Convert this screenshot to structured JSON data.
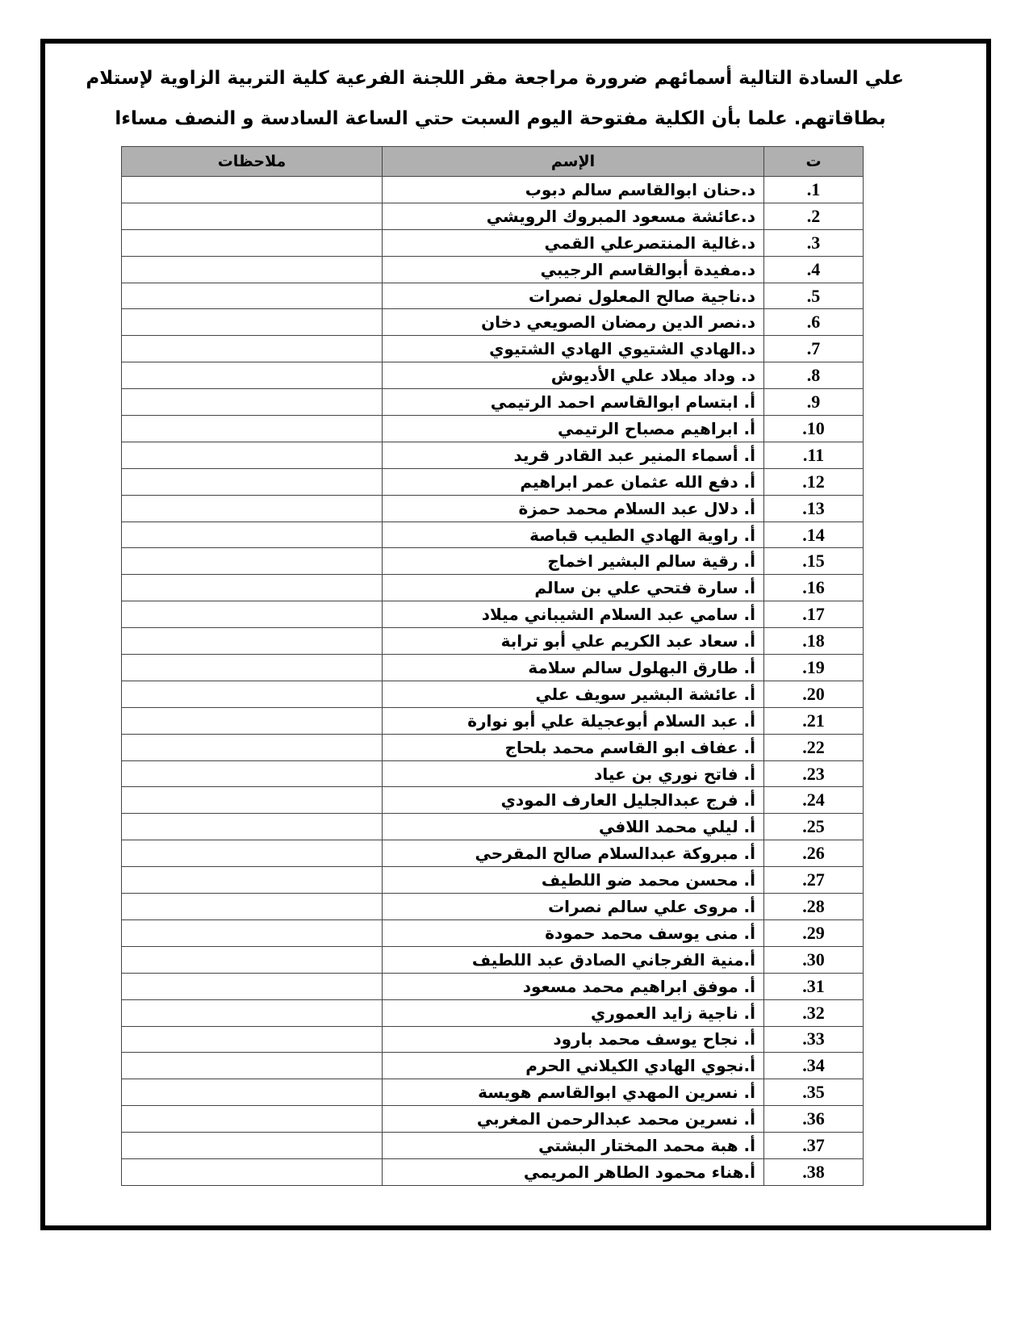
{
  "header": {
    "lines": [
      "علي السادة التالية أسمائهم ضرورة مراجعة مقر اللجنة الفرعية كلية التربية الزاوية لإستلام",
      "بطاقاتهم. علما بأن الكلية مفتوحة اليوم السبت حتي الساعة السادسة و النصف مساءا"
    ]
  },
  "table": {
    "columns": [
      "ت",
      "الإسم",
      "ملاحظات"
    ],
    "rows": [
      [
        "1.",
        "د.حنان ابوالقاسم سالم دبوب"
      ],
      [
        "2.",
        "د.عائشة مسعود المبروك الرويشي"
      ],
      [
        "3.",
        "د.غالية المنتصرعلي القمي"
      ],
      [
        "4.",
        "د.مفيدة أبوالقاسم الرجيبي"
      ],
      [
        "5.",
        "د.ناجية صالح المعلول نصرات"
      ],
      [
        "6.",
        "د.نصر الدين رمضان الصويعي دخان"
      ],
      [
        "7.",
        "د.الهادي الشتيوي الهادي الشتيوي"
      ],
      [
        "8.",
        "د. وداد ميلاد علي الأديوش"
      ],
      [
        "9.",
        "أ. ابتسام ابوالقاسم احمد الرتيمي"
      ],
      [
        "10.",
        "أ. ابراهيم مصباح الرتيمي"
      ],
      [
        "11.",
        "أ. أسماء المنير عبد القادر قريد"
      ],
      [
        "12.",
        "أ. دفع الله عثمان عمر ابراهيم"
      ],
      [
        "13.",
        "أ. دلال عبد السلام محمد حمزة"
      ],
      [
        "14.",
        "أ. راوية الهادي الطيب قباصة"
      ],
      [
        "15.",
        "أ. رقية سالم البشير اخماج"
      ],
      [
        "16.",
        "أ. سارة فتحي علي بن سالم"
      ],
      [
        "17.",
        "أ. سامي عبد السلام الشيباني ميلاد"
      ],
      [
        "18.",
        "أ. سعاد عبد الكريم علي أبو ترابة"
      ],
      [
        "19.",
        "أ. طارق البهلول سالم سلامة"
      ],
      [
        "20.",
        "أ. عائشة البشير سويف علي"
      ],
      [
        "21.",
        "أ. عبد السلام أبوعجيلة علي أبو نوارة"
      ],
      [
        "22.",
        "أ. عفاف ابو القاسم محمد بلحاج"
      ],
      [
        "23.",
        "أ. فاتح نوري بن عياد"
      ],
      [
        "24.",
        "أ. فرج عبدالجليل العارف المودي"
      ],
      [
        "25.",
        "أ. ليلي محمد اللافي"
      ],
      [
        "26.",
        "أ. مبروكة عبدالسلام صالح المقرحي"
      ],
      [
        "27.",
        "أ. محسن محمد ضو اللطيف"
      ],
      [
        "28.",
        "أ. مروى علي سالم نصرات"
      ],
      [
        "29.",
        "أ. منى يوسف محمد حمودة"
      ],
      [
        "30.",
        "أ.منية الفرجاني الصادق عبد اللطيف"
      ],
      [
        "31.",
        "أ. موفق ابراهيم محمد مسعود"
      ],
      [
        "32.",
        "أ. ناجية زايد العموري"
      ],
      [
        "33.",
        "أ. نجاح يوسف محمد بارود"
      ],
      [
        "34.",
        "أ.نجوي الهادي الكيلاني الحرم"
      ],
      [
        "35.",
        "أ. نسرين المهدي ابوالقاسم هويسة"
      ],
      [
        "36.",
        "أ. نسرين محمد عبدالرحمن المغربي"
      ],
      [
        "37.",
        "أ. هبة محمد المختار البشتي"
      ],
      [
        "38.",
        "أ.هناء محمود الطاهر المريمي"
      ]
    ]
  }
}
